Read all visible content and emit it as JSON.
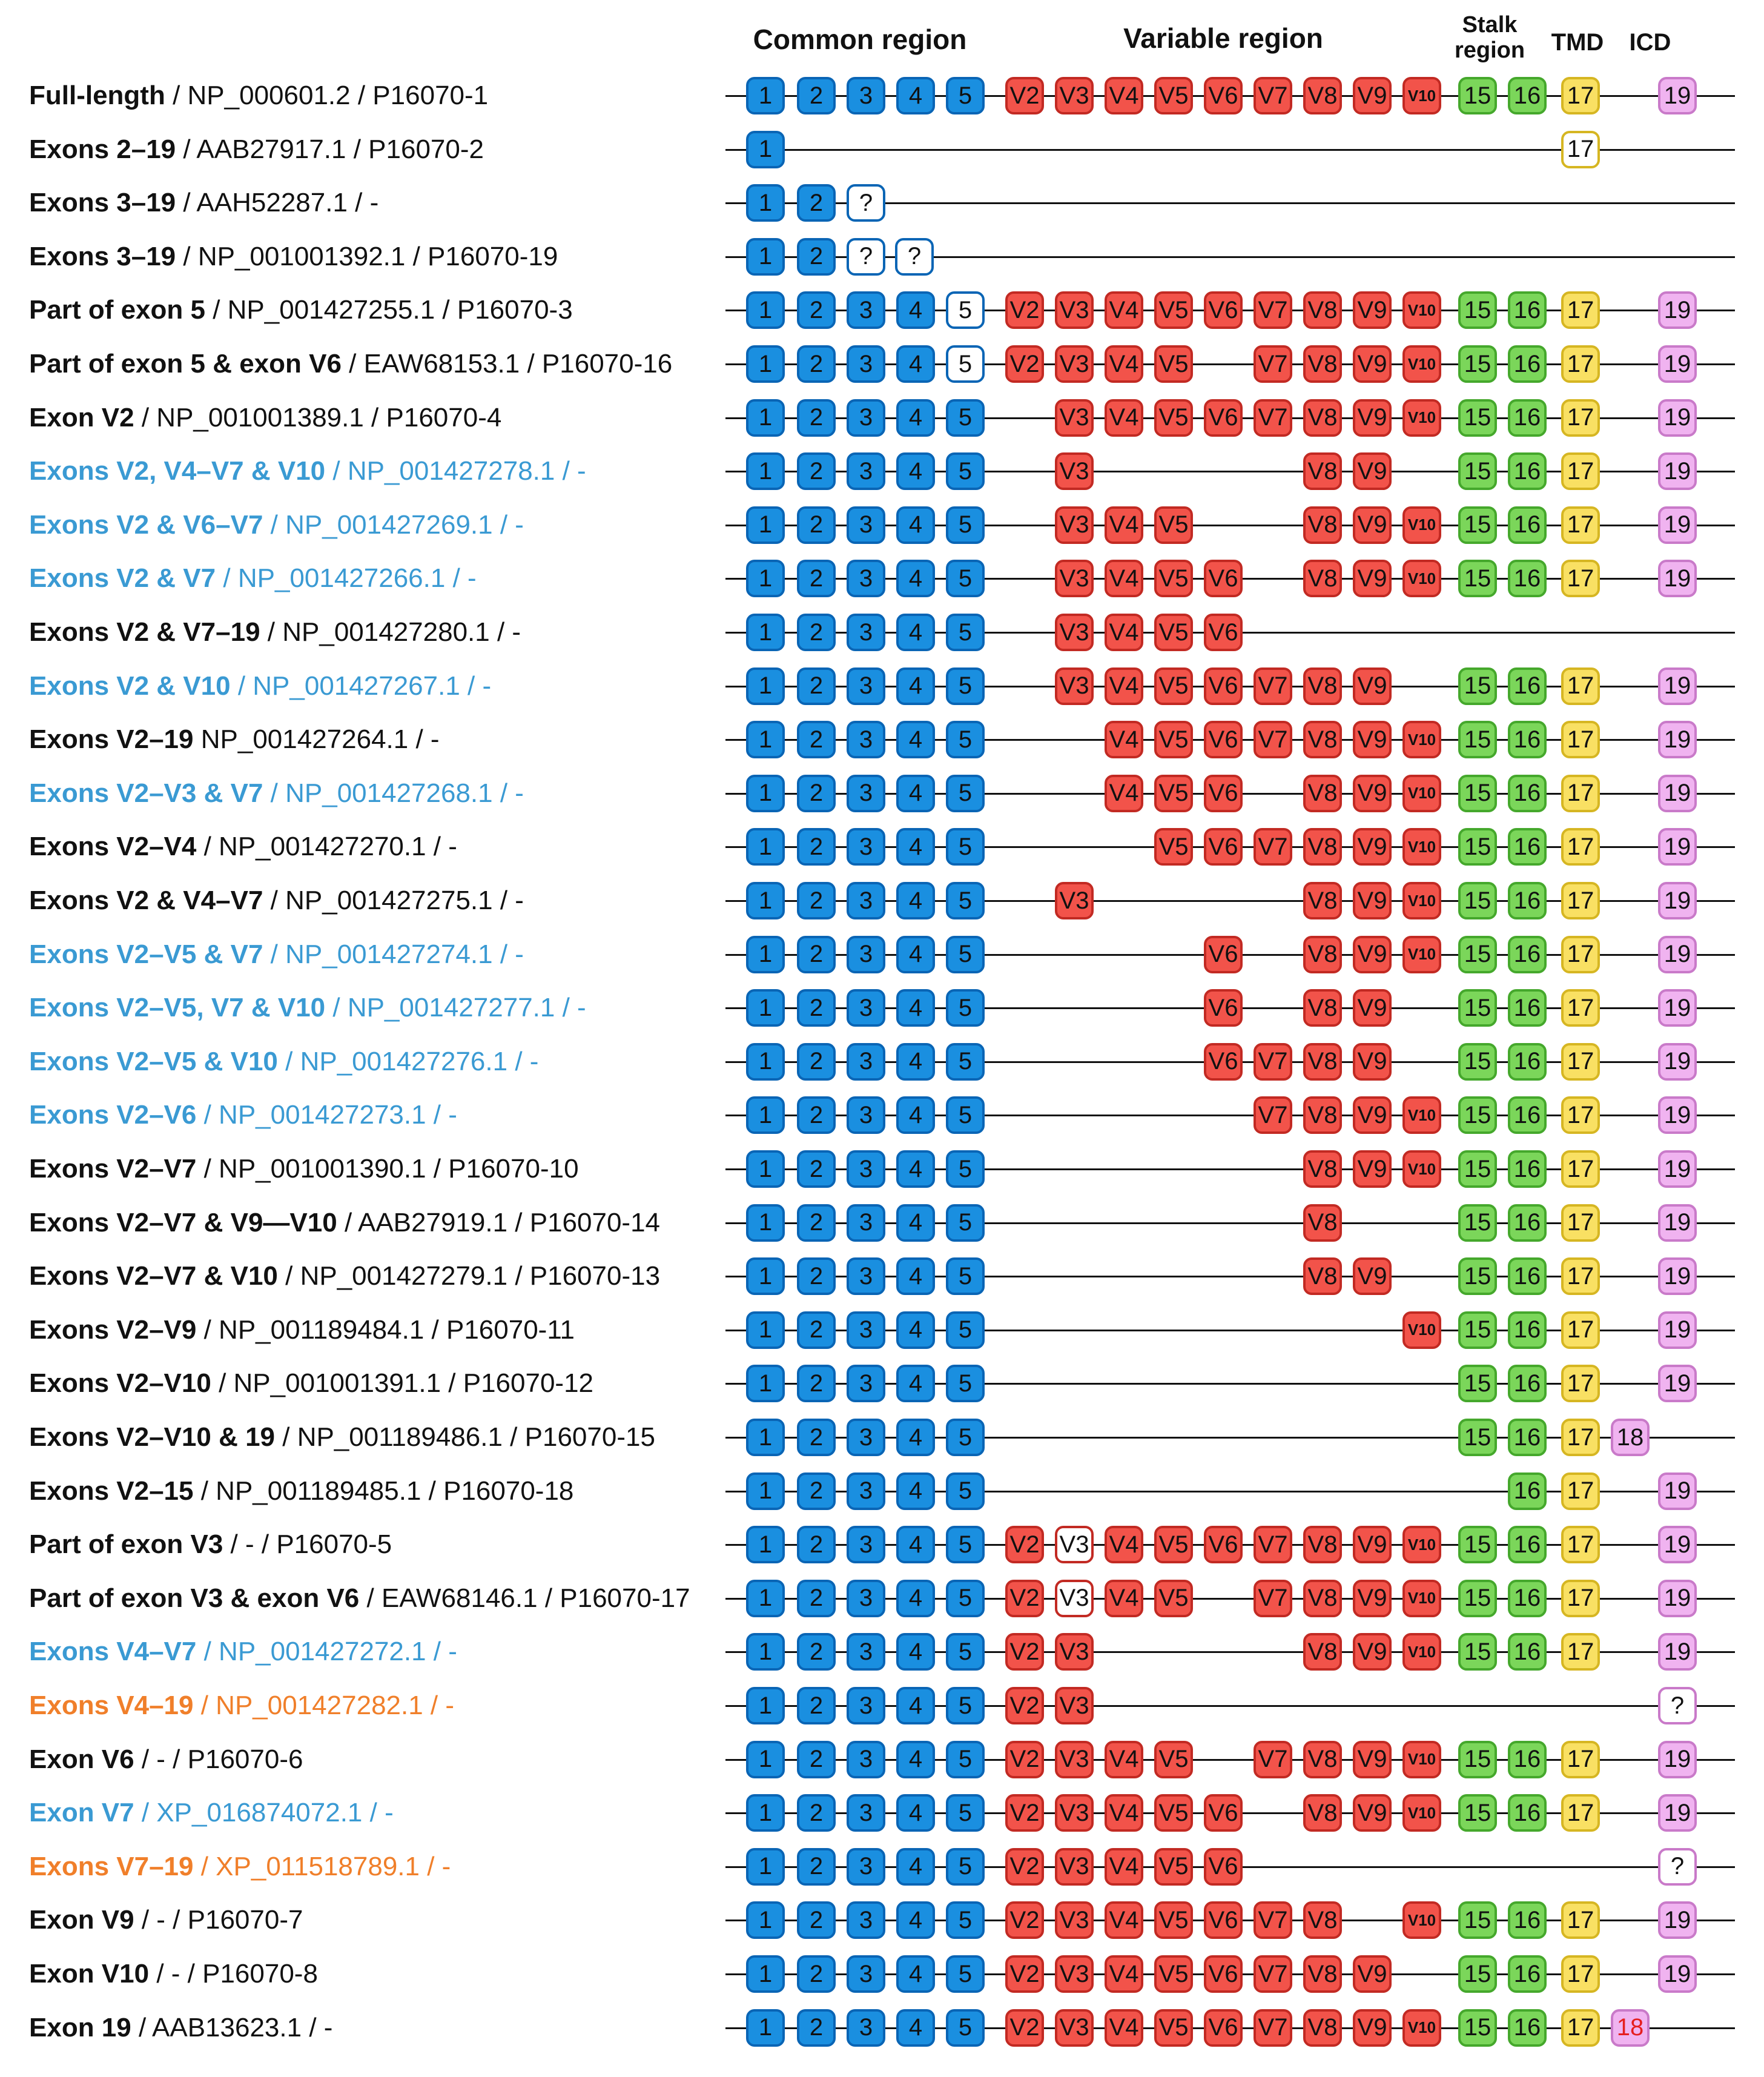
{
  "headers": {
    "common": "Common region",
    "variable": "Variable region",
    "stalk_line1": "Stalk",
    "stalk_line2": "region",
    "tmd": "TMD",
    "icd": "ICD"
  },
  "colors": {
    "common": "#1a8fe0",
    "common_border": "#0a65b5",
    "variable": "#f2534a",
    "variable_border": "#c22a23",
    "stalk": "#7bd65a",
    "stalk_border": "#45a82c",
    "tmd": "#f9e063",
    "tmd_border": "#d6b622",
    "icd": "#f0b3f0",
    "icd_border": "#c97ac9",
    "label_black": "#111111",
    "label_blue": "#3a9ad3",
    "label_orange": "#f07f2a"
  },
  "rows": [
    {
      "name": "Full-length",
      "detail": " / NP_000601.2 / P16070-1",
      "color": "black",
      "exons": [
        "1",
        "2",
        "3",
        "4",
        "5",
        "V2",
        "V3",
        "V4",
        "V5",
        "V6",
        "V7",
        "V8",
        "V9",
        "V10",
        "15",
        "16",
        "17",
        "19"
      ]
    },
    {
      "name": "Exons 2–19",
      "detail": " / AAB27917.1 / P16070-2",
      "color": "black",
      "exons": [
        "1",
        "17:trunc"
      ]
    },
    {
      "name": "Exons 3–19",
      "detail": " / AAH52287.1 / -",
      "color": "black",
      "exons": [
        "1",
        "2",
        "?"
      ]
    },
    {
      "name": "Exons 3–19",
      "detail": "  / NP_001001392.1 / P16070-19",
      "color": "black",
      "exons": [
        "1",
        "2",
        "?",
        "?"
      ]
    },
    {
      "name": "Part of exon 5",
      "detail": " / NP_001427255.1 / P16070-3",
      "color": "black",
      "exons": [
        "1",
        "2",
        "3",
        "4",
        "5:part",
        "V2",
        "V3",
        "V4",
        "V5",
        "V6",
        "V7",
        "V8",
        "V9",
        "V10",
        "15",
        "16",
        "17",
        "19"
      ]
    },
    {
      "name": "Part of exon 5 & exon V6",
      "detail": " / EAW68153.1 / P16070-16",
      "color": "black",
      "exons": [
        "1",
        "2",
        "3",
        "4",
        "5:part",
        "V2",
        "V3",
        "V4",
        "V5",
        "V7",
        "V8",
        "V9",
        "V10",
        "15",
        "16",
        "17",
        "19"
      ]
    },
    {
      "name": "Exon V2",
      "detail": " / NP_001001389.1 / P16070-4",
      "color": "black",
      "exons": [
        "1",
        "2",
        "3",
        "4",
        "5",
        "V3",
        "V4",
        "V5",
        "V6",
        "V7",
        "V8",
        "V9",
        "V10",
        "15",
        "16",
        "17",
        "19"
      ]
    },
    {
      "name": "Exons V2, V4–V7 & V10",
      "detail": " / NP_001427278.1 / -",
      "color": "blue",
      "exons": [
        "1",
        "2",
        "3",
        "4",
        "5",
        "V3",
        "V8",
        "V9",
        "15",
        "16",
        "17",
        "19"
      ]
    },
    {
      "name": "Exons V2 & V6–V7",
      "detail": " / NP_001427269.1 / -",
      "color": "blue",
      "exons": [
        "1",
        "2",
        "3",
        "4",
        "5",
        "V3",
        "V4",
        "V5",
        "V8",
        "V9",
        "V10",
        "15",
        "16",
        "17",
        "19"
      ]
    },
    {
      "name": "Exons V2 & V7",
      "detail": " / NP_001427266.1 / -",
      "color": "blue",
      "exons": [
        "1",
        "2",
        "3",
        "4",
        "5",
        "V3",
        "V4",
        "V5",
        "V6",
        "V8",
        "V9",
        "V10",
        "15",
        "16",
        "17",
        "19"
      ]
    },
    {
      "name": "Exons V2 & V7–19",
      "detail": " / NP_001427280.1 / -",
      "color": "black",
      "exons": [
        "1",
        "2",
        "3",
        "4",
        "5",
        "V3",
        "V4",
        "V5",
        "V6"
      ]
    },
    {
      "name": "Exons V2 & V10",
      "detail": " / NP_001427267.1 / -",
      "color": "blue",
      "exons": [
        "1",
        "2",
        "3",
        "4",
        "5",
        "V3",
        "V4",
        "V5",
        "V6",
        "V7",
        "V8",
        "V9",
        "15",
        "16",
        "17",
        "19"
      ]
    },
    {
      "name": "Exons V2–19",
      "detail": "  NP_001427264.1 / -",
      "color": "black",
      "exons": [
        "1",
        "2",
        "3",
        "4",
        "5",
        "V4",
        "V5",
        "V6",
        "V7",
        "V8",
        "V9",
        "V10",
        "15",
        "16",
        "17",
        "19"
      ]
    },
    {
      "name": "Exons V2–V3 & V7",
      "detail": " / NP_001427268.1 / -",
      "color": "blue",
      "exons": [
        "1",
        "2",
        "3",
        "4",
        "5",
        "V4",
        "V5",
        "V6",
        "V8",
        "V9",
        "V10",
        "15",
        "16",
        "17",
        "19"
      ]
    },
    {
      "name": "Exons V2–V4",
      "detail": " / NP_001427270.1 / -",
      "color": "black",
      "exons": [
        "1",
        "2",
        "3",
        "4",
        "5",
        "V5",
        "V6",
        "V7",
        "V8",
        "V9",
        "V10",
        "15",
        "16",
        "17",
        "19"
      ]
    },
    {
      "name": "Exons V2 & V4–V7",
      "detail": " / NP_001427275.1 / -",
      "color": "black",
      "exons": [
        "1",
        "2",
        "3",
        "4",
        "5",
        "V3",
        "V8",
        "V9",
        "V10",
        "15",
        "16",
        "17",
        "19"
      ]
    },
    {
      "name": "Exons V2–V5 & V7",
      "detail": " / NP_001427274.1 / -",
      "color": "blue",
      "exons": [
        "1",
        "2",
        "3",
        "4",
        "5",
        "V6",
        "V8",
        "V9",
        "V10",
        "15",
        "16",
        "17",
        "19"
      ]
    },
    {
      "name": "Exons V2–V5, V7 & V10",
      "detail": " / NP_001427277.1 / -",
      "color": "blue",
      "exons": [
        "1",
        "2",
        "3",
        "4",
        "5",
        "V6",
        "V8",
        "V9",
        "15",
        "16",
        "17",
        "19"
      ]
    },
    {
      "name": "Exons V2–V5 & V10",
      "detail": " / NP_001427276.1 / -",
      "color": "blue",
      "exons": [
        "1",
        "2",
        "3",
        "4",
        "5",
        "V6",
        "V7",
        "V8",
        "V9",
        "15",
        "16",
        "17",
        "19"
      ]
    },
    {
      "name": "Exons V2–V6",
      "detail": " / NP_001427273.1 / -",
      "color": "blue",
      "exons": [
        "1",
        "2",
        "3",
        "4",
        "5",
        "V7",
        "V8",
        "V9",
        "V10",
        "15",
        "16",
        "17",
        "19"
      ]
    },
    {
      "name": "Exons V2–V7",
      "detail": " / NP_001001390.1 / P16070-10",
      "color": "black",
      "exons": [
        "1",
        "2",
        "3",
        "4",
        "5",
        "V8",
        "V9",
        "V10",
        "15",
        "16",
        "17",
        "19"
      ]
    },
    {
      "name": "Exons V2–V7 & V9—V10",
      "detail": " / AAB27919.1 / P16070-14",
      "color": "black",
      "exons": [
        "1",
        "2",
        "3",
        "4",
        "5",
        "V8",
        "15",
        "16",
        "17",
        "19"
      ]
    },
    {
      "name": "Exons V2–V7 & V10",
      "detail": " / NP_001427279.1 / P16070-13",
      "color": "black",
      "exons": [
        "1",
        "2",
        "3",
        "4",
        "5",
        "V8",
        "V9",
        "15",
        "16",
        "17",
        "19"
      ]
    },
    {
      "name": "Exons V2–V9",
      "detail": " / NP_001189484.1 / P16070-11",
      "color": "black",
      "exons": [
        "1",
        "2",
        "3",
        "4",
        "5",
        "V10",
        "15",
        "16",
        "17",
        "19"
      ]
    },
    {
      "name": "Exons V2–V10",
      "detail": " / NP_001001391.1 / P16070-12",
      "color": "black",
      "exons": [
        "1",
        "2",
        "3",
        "4",
        "5",
        "15",
        "16",
        "17",
        "19"
      ]
    },
    {
      "name": "Exons V2–V10 & 19",
      "detail": " / NP_001189486.1 / P16070-15",
      "color": "black",
      "exons": [
        "1",
        "2",
        "3",
        "4",
        "5",
        "15",
        "16",
        "17",
        "18"
      ]
    },
    {
      "name": "Exons V2–15",
      "detail": " / NP_001189485.1 / P16070-18",
      "color": "black",
      "exons": [
        "1",
        "2",
        "3",
        "4",
        "5",
        "16",
        "17",
        "19"
      ]
    },
    {
      "name": "Part of exon V3",
      "detail": " / - / P16070-5",
      "color": "black",
      "exons": [
        "1",
        "2",
        "3",
        "4",
        "5",
        "V2",
        "V3:part",
        "V4",
        "V5",
        "V6",
        "V7",
        "V8",
        "V9",
        "V10",
        "15",
        "16",
        "17",
        "19"
      ]
    },
    {
      "name": "Part of exon V3 & exon V6",
      "detail": " / EAW68146.1 / P16070-17",
      "color": "black",
      "exons": [
        "1",
        "2",
        "3",
        "4",
        "5",
        "V2",
        "V3:part",
        "V4",
        "V5",
        "V7",
        "V8",
        "V9",
        "V10",
        "15",
        "16",
        "17",
        "19"
      ]
    },
    {
      "name": "Exons V4–V7",
      "detail": " / NP_001427272.1 / -",
      "color": "blue",
      "exons": [
        "1",
        "2",
        "3",
        "4",
        "5",
        "V2",
        "V3",
        "V8",
        "V9",
        "V10",
        "15",
        "16",
        "17",
        "19"
      ]
    },
    {
      "name": "Exons V4–19",
      "detail": " / NP_001427282.1 / -",
      "color": "orange",
      "exons": [
        "1",
        "2",
        "3",
        "4",
        "5",
        "V2",
        "V3",
        "?icd"
      ]
    },
    {
      "name": "Exon V6",
      "detail": " / - / P16070-6",
      "color": "black",
      "exons": [
        "1",
        "2",
        "3",
        "4",
        "5",
        "V2",
        "V3",
        "V4",
        "V5",
        "V7",
        "V8",
        "V9",
        "V10",
        "15",
        "16",
        "17",
        "19"
      ]
    },
    {
      "name": "Exon V7",
      "detail": " / XP_016874072.1 / -",
      "color": "blue",
      "exons": [
        "1",
        "2",
        "3",
        "4",
        "5",
        "V2",
        "V3",
        "V4",
        "V5",
        "V6",
        "V8",
        "V9",
        "V10",
        "15",
        "16",
        "17",
        "19"
      ]
    },
    {
      "name": "Exons V7–19",
      "detail": " / XP_011518789.1 / -",
      "color": "orange",
      "exons": [
        "1",
        "2",
        "3",
        "4",
        "5",
        "V2",
        "V3",
        "V4",
        "V5",
        "V6",
        "?icd"
      ]
    },
    {
      "name": "Exon V9",
      "detail": " / - / P16070-7",
      "color": "black",
      "exons": [
        "1",
        "2",
        "3",
        "4",
        "5",
        "V2",
        "V3",
        "V4",
        "V5",
        "V6",
        "V7",
        "V8",
        "V10",
        "15",
        "16",
        "17",
        "19"
      ]
    },
    {
      "name": "Exon V10",
      "detail": " / - / P16070-8",
      "color": "black",
      "exons": [
        "1",
        "2",
        "3",
        "4",
        "5",
        "V2",
        "V3",
        "V4",
        "V5",
        "V6",
        "V7",
        "V8",
        "V9",
        "15",
        "16",
        "17",
        "19"
      ]
    },
    {
      "name": "Exon 19",
      "detail": " / AAB13623.1 / -",
      "color": "black",
      "exons": [
        "1",
        "2",
        "3",
        "4",
        "5",
        "V2",
        "V3",
        "V4",
        "V5",
        "V6",
        "V7",
        "V8",
        "V9",
        "V10",
        "15",
        "16",
        "17",
        "18:red"
      ]
    }
  ]
}
